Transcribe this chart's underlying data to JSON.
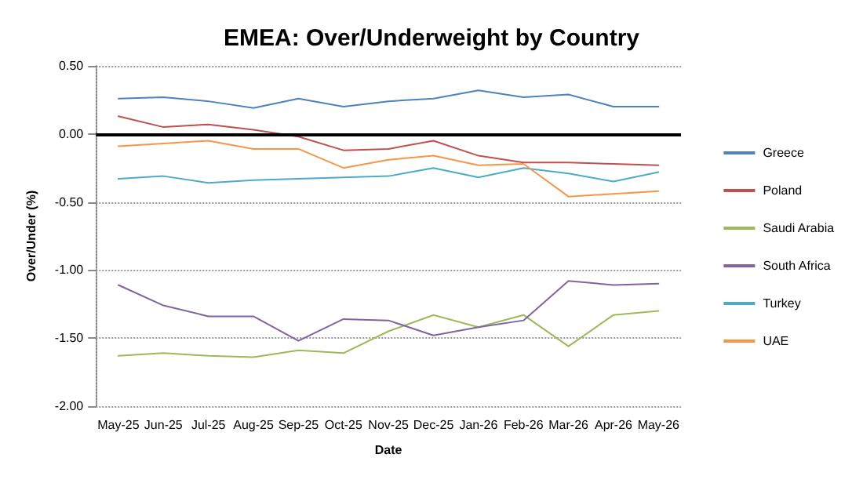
{
  "chart_data": {
    "type": "line",
    "title": "EMEA: Over/Underweight by Country",
    "xlabel": "Date",
    "ylabel": "Over/Under (%)",
    "categories": [
      "May-25",
      "Jun-25",
      "Jul-25",
      "Aug-25",
      "Sep-25",
      "Oct-25",
      "Nov-25",
      "Dec-25",
      "Jan-26",
      "Feb-26",
      "Mar-26",
      "Apr-26",
      "May-26"
    ],
    "series": [
      {
        "name": "Greece",
        "color": "#4f81bd",
        "values": [
          0.26,
          0.27,
          0.24,
          0.19,
          0.26,
          0.2,
          0.24,
          0.26,
          0.32,
          0.27,
          0.29,
          0.2,
          0.2
        ]
      },
      {
        "name": "Poland",
        "color": "#c0504d",
        "values": [
          0.13,
          0.05,
          0.07,
          0.03,
          -0.02,
          -0.12,
          -0.11,
          -0.05,
          -0.16,
          -0.21,
          -0.21,
          -0.22,
          -0.23
        ]
      },
      {
        "name": "Saudi Arabia",
        "color": "#9bbb59",
        "values": [
          -1.63,
          -1.61,
          -1.63,
          -1.64,
          -1.59,
          -1.61,
          -1.45,
          -1.33,
          -1.42,
          -1.33,
          -1.56,
          -1.33,
          -1.3
        ]
      },
      {
        "name": "South Africa",
        "color": "#8064a2",
        "values": [
          -1.11,
          -1.26,
          -1.34,
          -1.34,
          -1.52,
          -1.36,
          -1.37,
          -1.48,
          -1.42,
          -1.37,
          -1.08,
          -1.11,
          -1.1
        ]
      },
      {
        "name": "Turkey",
        "color": "#4bacc6",
        "values": [
          -0.33,
          -0.31,
          -0.36,
          -0.34,
          -0.33,
          -0.32,
          -0.31,
          -0.25,
          -0.32,
          -0.25,
          -0.29,
          -0.35,
          -0.28
        ]
      },
      {
        "name": "UAE",
        "color": "#f79646",
        "values": [
          -0.09,
          -0.07,
          -0.05,
          -0.11,
          -0.11,
          -0.25,
          -0.19,
          -0.16,
          -0.23,
          -0.22,
          -0.46,
          -0.44,
          -0.42
        ]
      }
    ],
    "ylim": [
      -2,
      0.5
    ],
    "yticks": [
      {
        "value": -2,
        "label": "-2.00"
      },
      {
        "value": -1.5,
        "label": "-1.50"
      },
      {
        "value": -1,
        "label": "-1.00"
      },
      {
        "value": -0.5,
        "label": "-0.50"
      },
      {
        "value": 0,
        "label": "0.00"
      },
      {
        "value": 0.5,
        "label": "0.50"
      }
    ],
    "ref_lines": [
      {
        "axis": "y",
        "value": 0,
        "color": "#000000"
      }
    ],
    "grid": "y",
    "legend": "right",
    "marker": "none",
    "line_style": "solid"
  }
}
